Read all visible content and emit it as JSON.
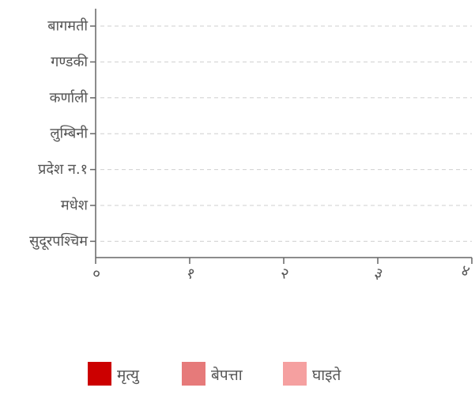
{
  "chart_data": {
    "type": "bar",
    "orientation": "horizontal",
    "stacked": true,
    "categories": [
      "बागमती",
      "गण्डकी",
      "कर्णाली",
      "लुम्बिनी",
      "प्रदेश न.१",
      "मधेश",
      "सुदूरपश्चिम"
    ],
    "series": [
      {
        "name": "मृत्यु",
        "color": "#cc0000",
        "values": [
          0,
          0,
          0,
          0,
          0,
          0,
          0
        ]
      },
      {
        "name": "बेपत्ता",
        "color": "#e67a7a",
        "values": [
          0,
          0,
          0,
          0,
          0,
          0,
          0
        ]
      },
      {
        "name": "घाइते",
        "color": "#f5a0a0",
        "values": [
          0,
          0,
          0,
          0,
          0,
          0,
          0
        ]
      }
    ],
    "x_ticks": [
      "०",
      "१",
      "२",
      "३",
      "४"
    ],
    "xlim": [
      0,
      4
    ],
    "grid": true,
    "legend_position": "bottom"
  }
}
